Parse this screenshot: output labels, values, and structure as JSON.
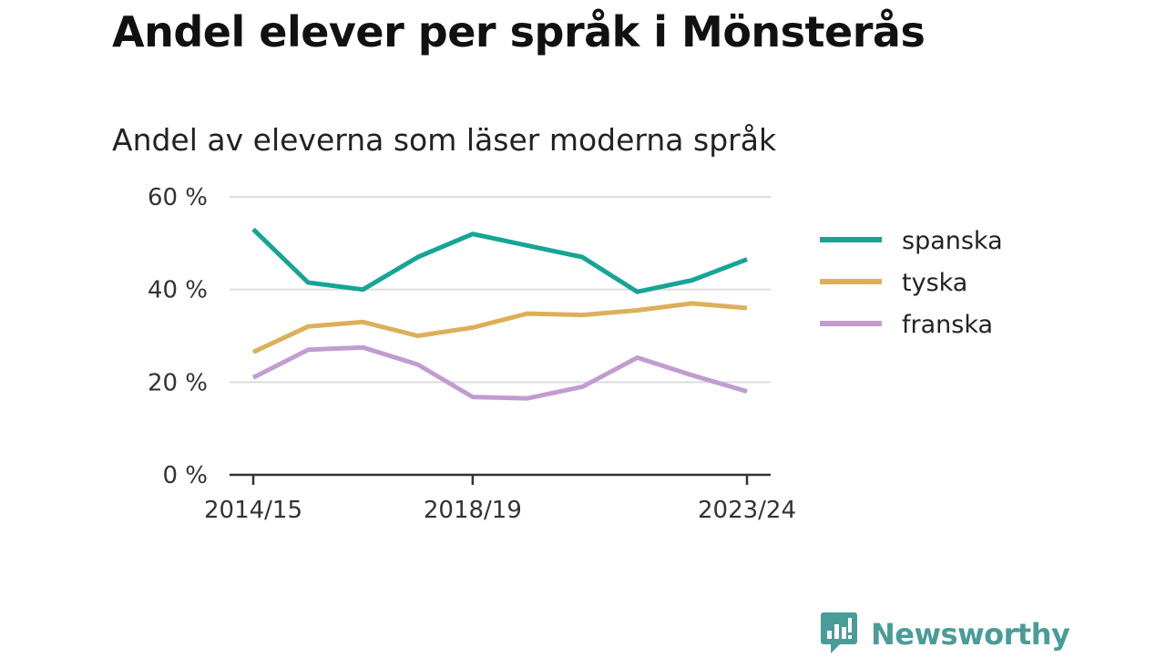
{
  "title": "Andel elever per språk i Mönsterås",
  "subtitle": "Andel av eleverna som läser moderna språk",
  "brand": {
    "name": "Newsworthy",
    "icon": "newsworthy-logo-icon",
    "color": "#4a9c98"
  },
  "chart_data": {
    "type": "line",
    "title": "Andel elever per språk i Mönsterås",
    "subtitle": "Andel av eleverna som läser moderna språk",
    "x": [
      "2014/15",
      "2015/16",
      "2016/17",
      "2017/18",
      "2018/19",
      "2019/20",
      "2020/21",
      "2021/22",
      "2022/23",
      "2023/24"
    ],
    "x_tick_labels": [
      "2014/15",
      "2018/19",
      "2023/24"
    ],
    "ylim": [
      0,
      60
    ],
    "y_ticks": [
      0,
      20,
      40,
      60
    ],
    "y_tick_labels": [
      "0 %",
      "20 %",
      "40 %",
      "60 %"
    ],
    "grid": true,
    "legend_position": "right",
    "series": [
      {
        "name": "spanska",
        "color": "#16a595",
        "values": [
          53,
          41.5,
          40,
          47,
          52,
          49.5,
          47,
          39.5,
          42,
          46.5
        ]
      },
      {
        "name": "tyska",
        "color": "#dcb05a",
        "values": [
          26.5,
          32,
          33,
          30,
          31.8,
          34.8,
          34.5,
          35.5,
          37,
          36
        ]
      },
      {
        "name": "franska",
        "color": "#c29cd0",
        "values": [
          21,
          27,
          27.5,
          23.8,
          16.8,
          16.5,
          19,
          25.3,
          21.5,
          18
        ]
      }
    ]
  }
}
